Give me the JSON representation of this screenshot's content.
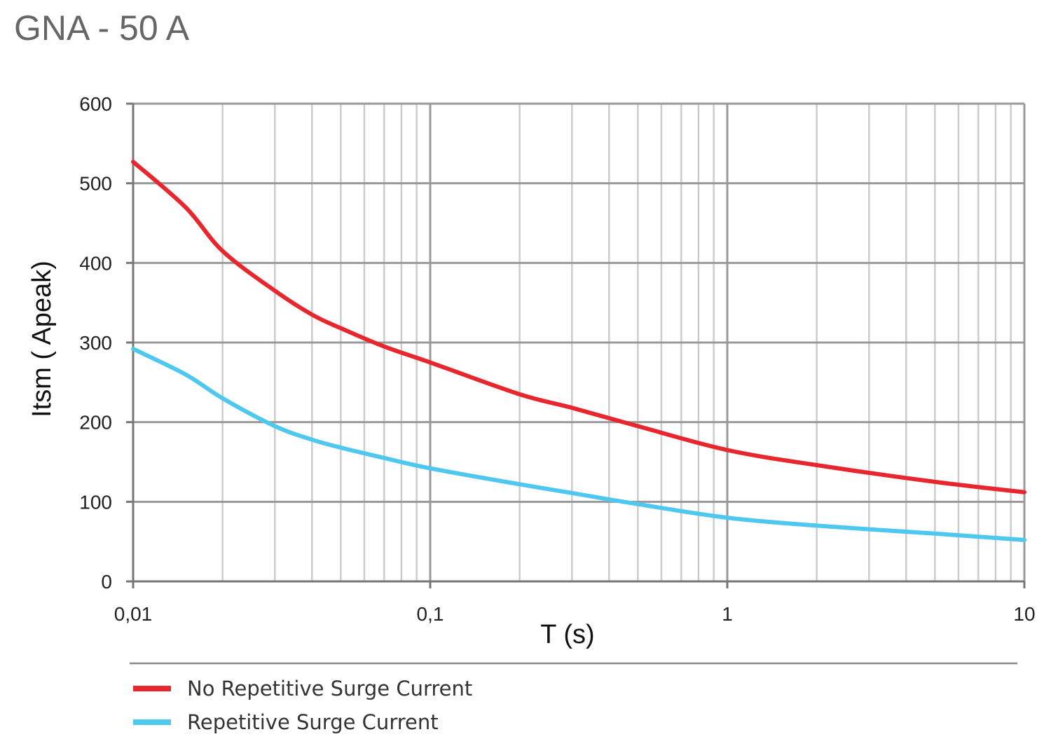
{
  "page": {
    "title": "GNA - 50 A"
  },
  "chart_data": {
    "type": "line",
    "xscale": "log",
    "xlim": [
      0.01,
      10
    ],
    "ylim": [
      0,
      600
    ],
    "xticks": [
      0.01,
      0.1,
      1,
      10
    ],
    "xtick_labels": [
      "0,01",
      "0,1",
      "1",
      "10"
    ],
    "yticks": [
      0,
      100,
      200,
      300,
      400,
      500,
      600
    ],
    "ytick_labels": [
      "0",
      "100",
      "200",
      "300",
      "400",
      "500",
      "600"
    ],
    "xlabel": "T (s)",
    "ylabel": "Itsm ( Apeak)",
    "grid": true,
    "legend": {
      "position": "bottom"
    },
    "series": [
      {
        "name": "No Repetitive Surge Current",
        "color": "#e8262d",
        "points": [
          [
            0.01,
            527
          ],
          [
            0.015,
            470
          ],
          [
            0.02,
            415
          ],
          [
            0.03,
            365
          ],
          [
            0.04,
            335
          ],
          [
            0.05,
            318
          ],
          [
            0.07,
            295
          ],
          [
            0.1,
            275
          ],
          [
            0.2,
            235
          ],
          [
            0.3,
            218
          ],
          [
            0.5,
            195
          ],
          [
            1,
            165
          ],
          [
            2,
            146
          ],
          [
            5,
            125
          ],
          [
            10,
            112
          ]
        ]
      },
      {
        "name": "Repetitive Surge Current",
        "color": "#4fc8f0",
        "points": [
          [
            0.01,
            292
          ],
          [
            0.015,
            260
          ],
          [
            0.02,
            230
          ],
          [
            0.03,
            195
          ],
          [
            0.04,
            178
          ],
          [
            0.05,
            168
          ],
          [
            0.07,
            155
          ],
          [
            0.1,
            142
          ],
          [
            0.2,
            122
          ],
          [
            0.3,
            111
          ],
          [
            0.5,
            97
          ],
          [
            1,
            80
          ],
          [
            2,
            70
          ],
          [
            5,
            60
          ],
          [
            10,
            52
          ]
        ]
      }
    ]
  }
}
